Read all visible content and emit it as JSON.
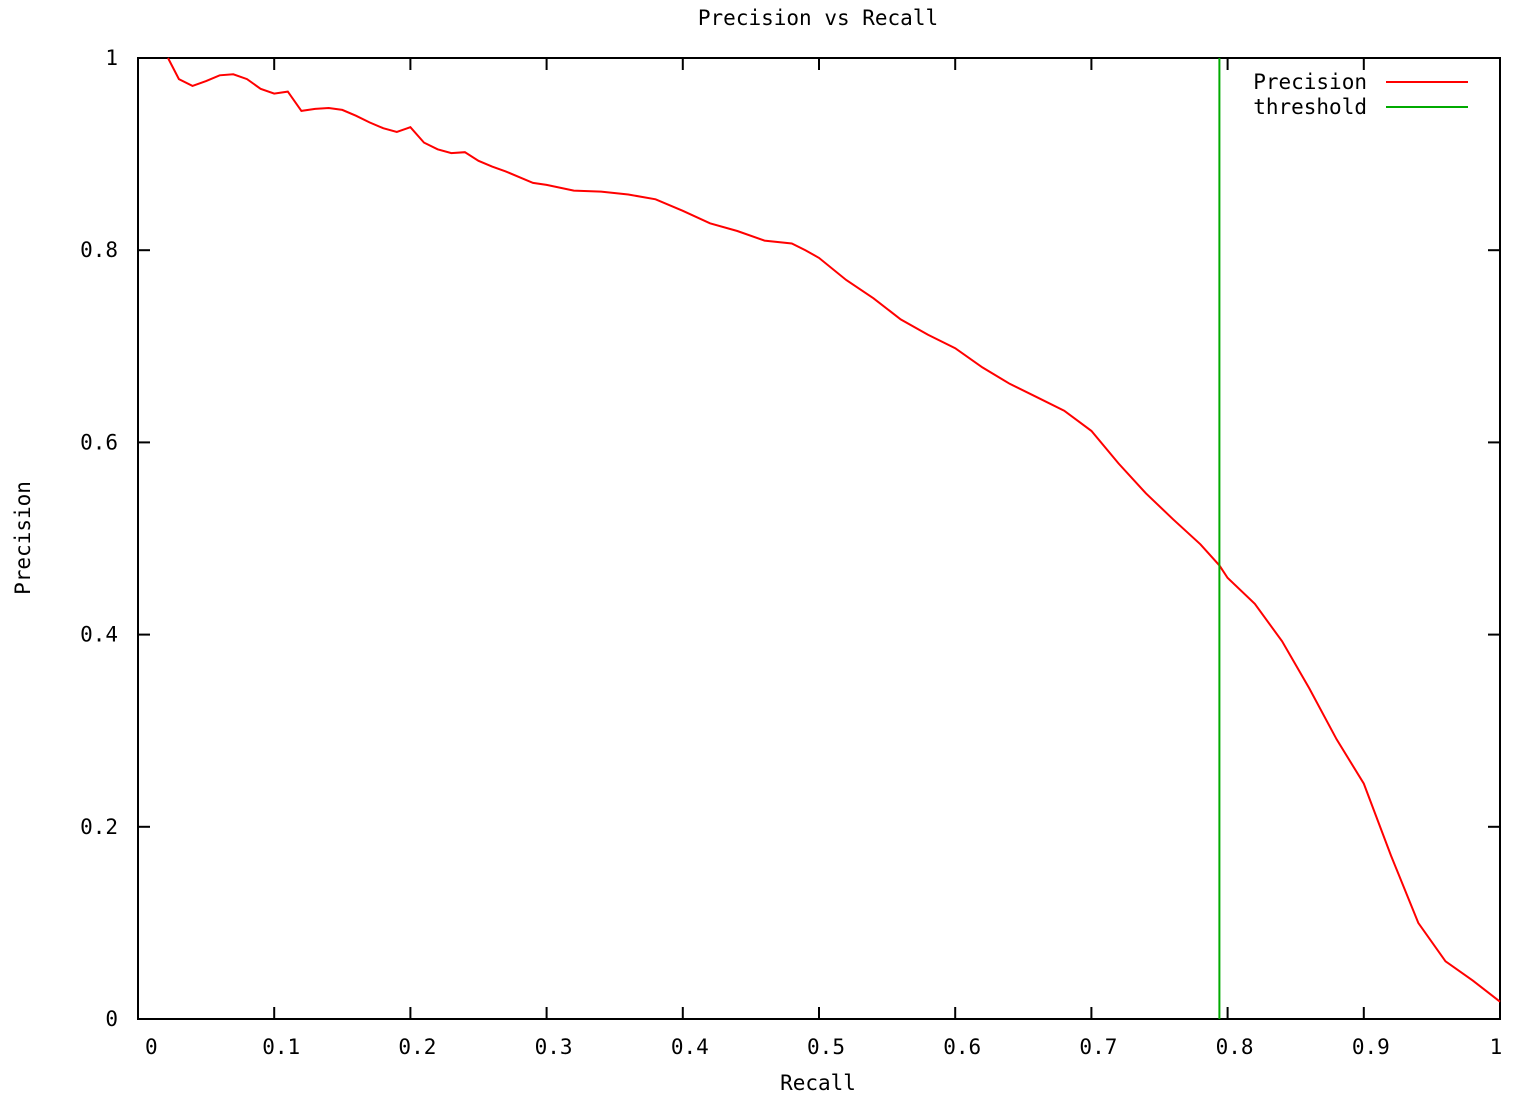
{
  "chart_data": {
    "type": "line",
    "title": "Precision vs Recall",
    "xlabel": "Recall",
    "ylabel": "Precision",
    "xlim": [
      0,
      1
    ],
    "ylim": [
      0,
      1
    ],
    "grid": false,
    "legend_position": "top-right",
    "x_ticks": [
      "0",
      "0.1",
      "0.2",
      "0.3",
      "0.4",
      "0.5",
      "0.6",
      "0.7",
      "0.8",
      "0.9",
      "1"
    ],
    "y_ticks": [
      "0",
      "0.2",
      "0.4",
      "0.6",
      "0.8",
      "1"
    ],
    "series": [
      {
        "name": "Precision",
        "color": "#ff0000",
        "x": [
          0.022,
          0.03,
          0.04,
          0.05,
          0.06,
          0.07,
          0.08,
          0.09,
          0.1,
          0.11,
          0.12,
          0.13,
          0.14,
          0.15,
          0.16,
          0.17,
          0.18,
          0.19,
          0.2,
          0.21,
          0.22,
          0.23,
          0.24,
          0.25,
          0.26,
          0.27,
          0.28,
          0.29,
          0.3,
          0.32,
          0.34,
          0.36,
          0.38,
          0.4,
          0.42,
          0.44,
          0.46,
          0.48,
          0.49,
          0.5,
          0.52,
          0.54,
          0.56,
          0.58,
          0.6,
          0.62,
          0.64,
          0.66,
          0.68,
          0.7,
          0.72,
          0.74,
          0.76,
          0.78,
          0.794,
          0.8,
          0.82,
          0.84,
          0.86,
          0.88,
          0.9,
          0.92,
          0.94,
          0.96,
          0.98,
          1.0
        ],
        "y": [
          1.0,
          0.978,
          0.971,
          0.976,
          0.982,
          0.983,
          0.978,
          0.968,
          0.963,
          0.965,
          0.945,
          0.947,
          0.948,
          0.946,
          0.94,
          0.933,
          0.927,
          0.923,
          0.928,
          0.912,
          0.905,
          0.901,
          0.902,
          0.893,
          0.887,
          0.882,
          0.876,
          0.87,
          0.868,
          0.862,
          0.861,
          0.858,
          0.853,
          0.841,
          0.828,
          0.82,
          0.81,
          0.807,
          0.8,
          0.792,
          0.769,
          0.75,
          0.728,
          0.712,
          0.698,
          0.678,
          0.661,
          0.647,
          0.633,
          0.612,
          0.578,
          0.547,
          0.52,
          0.494,
          0.472,
          0.459,
          0.432,
          0.393,
          0.344,
          0.291,
          0.245,
          0.17,
          0.1,
          0.06,
          0.04,
          0.018
        ]
      },
      {
        "name": "threshold",
        "color": "#00aa00",
        "x": [
          0.794,
          0.794
        ],
        "y": [
          0,
          1
        ]
      }
    ]
  }
}
